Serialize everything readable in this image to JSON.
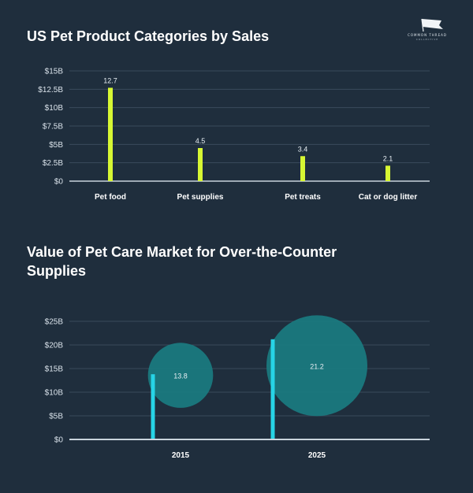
{
  "logo": {
    "text": "COMMON THREAD",
    "sub": "COLLECTIVE"
  },
  "chart_data": [
    {
      "type": "bar",
      "title": "US Pet Product Categories by Sales",
      "categories": [
        "Pet food",
        "Pet supplies",
        "Pet treats",
        "Cat or dog litter"
      ],
      "values": [
        12.7,
        4.5,
        3.4,
        2.1
      ],
      "data_labels": [
        "12.7",
        "4.5",
        "3.4",
        "2.1"
      ],
      "yticks": [
        0,
        2.5,
        5,
        7.5,
        10,
        12.5,
        15
      ],
      "ytick_labels": [
        "$0",
        "$2.5B",
        "$5B",
        "$7.5B",
        "$10B",
        "$12.5B",
        "$15B"
      ],
      "ylim": [
        0,
        15
      ],
      "bar_color": "#d7f733",
      "grid": true
    },
    {
      "type": "bar",
      "title": "Value of Pet Care Market for Over-the-Counter Supplies",
      "categories": [
        "2015",
        "2025"
      ],
      "values": [
        13.8,
        21.2
      ],
      "data_labels": [
        "13.8",
        "21.2"
      ],
      "yticks": [
        0,
        5,
        10,
        15,
        20,
        25
      ],
      "ytick_labels": [
        "$0",
        "$5B",
        "$10B",
        "$15B",
        "$20B",
        "$25B"
      ],
      "ylim": [
        0,
        25
      ],
      "bar_color": "#27d4e6",
      "bubble_color": "#1a7d82",
      "grid": true
    }
  ]
}
